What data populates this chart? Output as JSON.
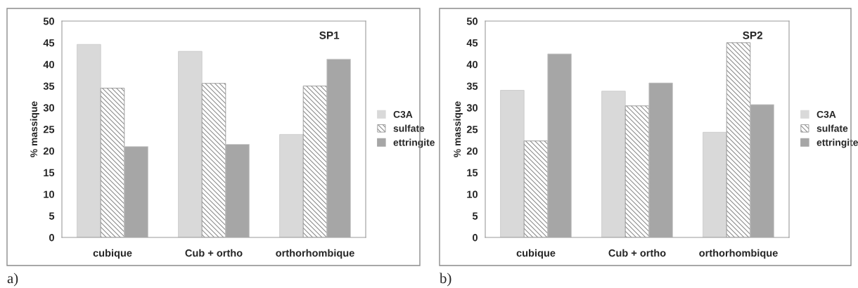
{
  "chart_data": [
    {
      "type": "bar",
      "title": "SP1",
      "ylabel": "% massique",
      "categories": [
        "cubique",
        "Cub + ortho",
        "orthorhombique"
      ],
      "series": [
        {
          "name": "C3A",
          "color": "#d9d9d9",
          "values": [
            44.6,
            43.0,
            23.8
          ]
        },
        {
          "name": "sulfate",
          "color": "#8c8c8c",
          "values": [
            34.5,
            35.6,
            35.0
          ]
        },
        {
          "name": "ettringite",
          "color": "#a6a6a6",
          "values": [
            21.0,
            21.5,
            41.2
          ]
        }
      ],
      "ylim": [
        0,
        50
      ],
      "yticks": [
        0,
        5,
        10,
        15,
        20,
        25,
        30,
        35,
        40,
        45,
        50
      ],
      "grid": false,
      "legend": "right",
      "annotations": [
        "a)"
      ]
    },
    {
      "type": "bar",
      "title": "SP2",
      "ylabel": "% massique",
      "categories": [
        "cubique",
        "Cub + ortho",
        "orthorhombique"
      ],
      "series": [
        {
          "name": "C3A",
          "color": "#d9d9d9",
          "values": [
            34.0,
            33.8,
            24.3
          ]
        },
        {
          "name": "sulfate",
          "color": "#8c8c8c",
          "values": [
            22.3,
            30.4,
            45.0
          ]
        },
        {
          "name": "ettringite",
          "color": "#a6a6a6",
          "values": [
            42.4,
            35.7,
            30.7
          ]
        }
      ],
      "ylim": [
        0,
        50
      ],
      "yticks": [
        0,
        5,
        10,
        15,
        20,
        25,
        30,
        35,
        40,
        45,
        50
      ],
      "grid": false,
      "legend": "right",
      "annotations": [
        "b)"
      ]
    }
  ]
}
